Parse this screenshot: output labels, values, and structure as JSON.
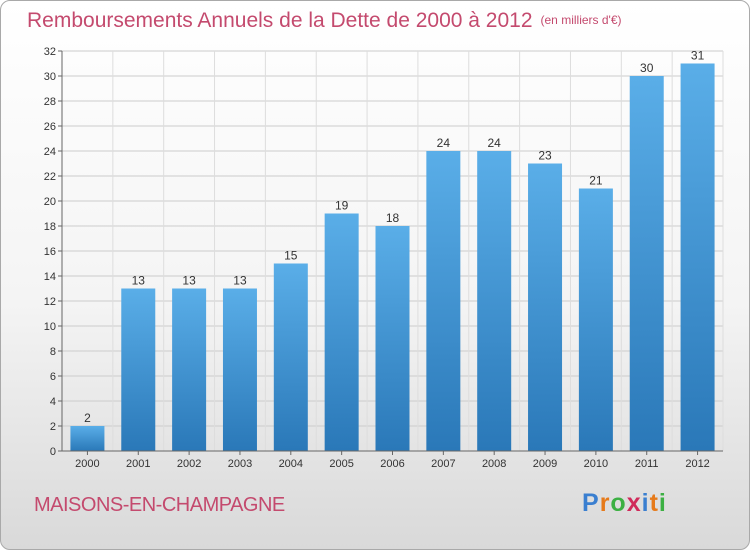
{
  "title": "Remboursements Annuels de la Dette de 2000 à 2012",
  "unit": "(en milliers d'€)",
  "commune": "MAISONS-EN-CHAMPAGNE",
  "logo": {
    "text": "Proxiti",
    "letters": [
      "P",
      "r",
      "o",
      "x",
      "i",
      "t",
      "i"
    ],
    "colors": [
      "#3a7fd0",
      "#e67a1a",
      "#3cb043",
      "#d02a5a",
      "#3a7fd0",
      "#e67a1a",
      "#3cb043"
    ]
  },
  "colors": {
    "title": "#c44a6e",
    "bar_top": "#5aaee8",
    "bar_bottom": "#2a78b8",
    "grid": "#cccccc"
  },
  "chart_data": {
    "type": "bar",
    "categories": [
      "2000",
      "2001",
      "2002",
      "2003",
      "2004",
      "2005",
      "2006",
      "2007",
      "2008",
      "2009",
      "2010",
      "2011",
      "2012"
    ],
    "values": [
      2,
      13,
      13,
      13,
      15,
      19,
      18,
      24,
      24,
      23,
      21,
      30,
      31
    ],
    "ylim": [
      0,
      32
    ],
    "yticks": [
      0,
      2,
      4,
      6,
      8,
      10,
      12,
      14,
      16,
      18,
      20,
      22,
      24,
      26,
      28,
      30,
      32
    ],
    "grid": true,
    "data_labels": true
  }
}
